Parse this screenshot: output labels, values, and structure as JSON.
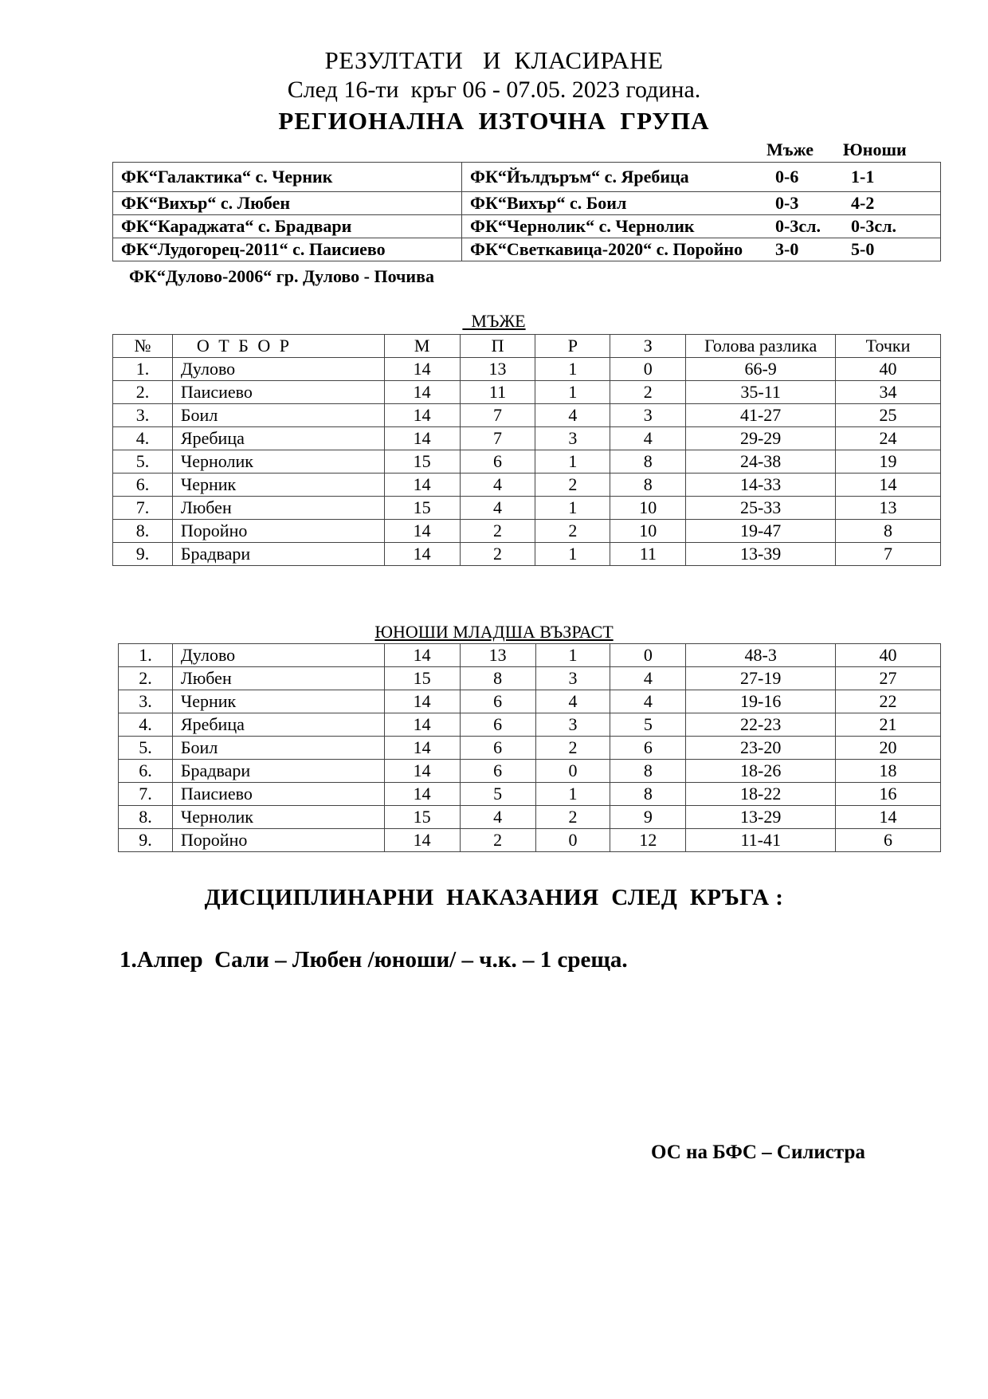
{
  "header": {
    "title": "РЕЗУЛТАТИ   И  КЛАСИРАНЕ",
    "subtitle": "След 16-ти  кръг 06 - 07.05. 2023 година.",
    "group": "РЕГИОНАЛНА  ИЗТОЧНА  ГРУПА"
  },
  "results": {
    "col_men": "Мъже",
    "col_youth": "Юноши",
    "matches": [
      {
        "home": "ФК“Галактика“ с. Черник",
        "away": "ФК“Йълдъръм“ с. Яребица",
        "men": "0-6",
        "youth": "1-1"
      },
      {
        "home": "ФК“Вихър“ с. Любен",
        "away": "ФК“Вихър“ с. Боил",
        "men": "0-3",
        "youth": "4-2"
      },
      {
        "home": "ФК“Караджата“ с. Брадвари",
        "away": "ФК“Чернолик“ с. Чернолик",
        "men": "0-3сл.",
        "youth": "0-3сл."
      },
      {
        "home": "ФК“Лудогорец-2011“ с. Паисиево",
        "away": "ФК“Светкавица-2020“ с. Поройно",
        "men": "3-0",
        "youth": "5-0"
      }
    ],
    "rest": "ФК“Дулово-2006“ гр. Дулово - Почива"
  },
  "men": {
    "caption": "  МЪЖЕ",
    "columns": [
      "№",
      "О Т Б О Р",
      "М",
      "П",
      "Р",
      "З",
      "Голова разлика",
      "Точки"
    ],
    "rows": [
      [
        "1.",
        "Дулово",
        "14",
        "13",
        "1",
        "0",
        "66-9",
        "40"
      ],
      [
        "2.",
        "Паисиево",
        "14",
        "11",
        "1",
        "2",
        "35-11",
        "34"
      ],
      [
        "3.",
        "Боил",
        "14",
        "7",
        "4",
        "3",
        "41-27",
        "25"
      ],
      [
        "4.",
        "Яребица",
        "14",
        "7",
        "3",
        "4",
        "29-29",
        "24"
      ],
      [
        "5.",
        "Чернолик",
        "15",
        "6",
        "1",
        "8",
        "24-38",
        "19"
      ],
      [
        "6.",
        "Черник",
        "14",
        "4",
        "2",
        "8",
        "14-33",
        "14"
      ],
      [
        "7.",
        "Любен",
        "15",
        "4",
        "1",
        "10",
        "25-33",
        "13"
      ],
      [
        "8.",
        "Поройно",
        "14",
        "2",
        "2",
        "10",
        "19-47",
        "8"
      ],
      [
        "9.",
        "Брадвари",
        "14",
        "2",
        "1",
        "11",
        "13-39",
        "7"
      ]
    ]
  },
  "youth": {
    "caption": "ЮНОШИ  МЛАДША ВЪЗРАСТ",
    "rows": [
      [
        "1.",
        "Дулово",
        "14",
        "13",
        "1",
        "0",
        "48-3",
        "40"
      ],
      [
        "2.",
        "Любен",
        "15",
        "8",
        "3",
        "4",
        "27-19",
        "27"
      ],
      [
        "3.",
        "Черник",
        "14",
        "6",
        "4",
        "4",
        "19-16",
        "22"
      ],
      [
        "4.",
        "Яребица",
        "14",
        "6",
        "3",
        "5",
        "22-23",
        "21"
      ],
      [
        "5.",
        "Боил",
        "14",
        "6",
        "2",
        "6",
        "23-20",
        "20"
      ],
      [
        "6.",
        "Брадвари",
        "14",
        "6",
        "0",
        "8",
        "18-26",
        "18"
      ],
      [
        "7.",
        "Паисиево",
        "14",
        "5",
        "1",
        "8",
        "18-22",
        "16"
      ],
      [
        "8.",
        "Чернолик",
        "15",
        "4",
        "2",
        "9",
        "13-29",
        "14"
      ],
      [
        "9.",
        "Поройно",
        "14",
        "2",
        "0",
        "12",
        "11-41",
        "6"
      ]
    ]
  },
  "discipline": {
    "heading": "ДИСЦИПЛИНАРНИ  НАКАЗАНИЯ  СЛЕД  КРЪГА :",
    "items": [
      "1.Алпер  Сали – Любен /юноши/ – ч.к. – 1 среща."
    ]
  },
  "signature": "ОС на БФС – Силистра"
}
